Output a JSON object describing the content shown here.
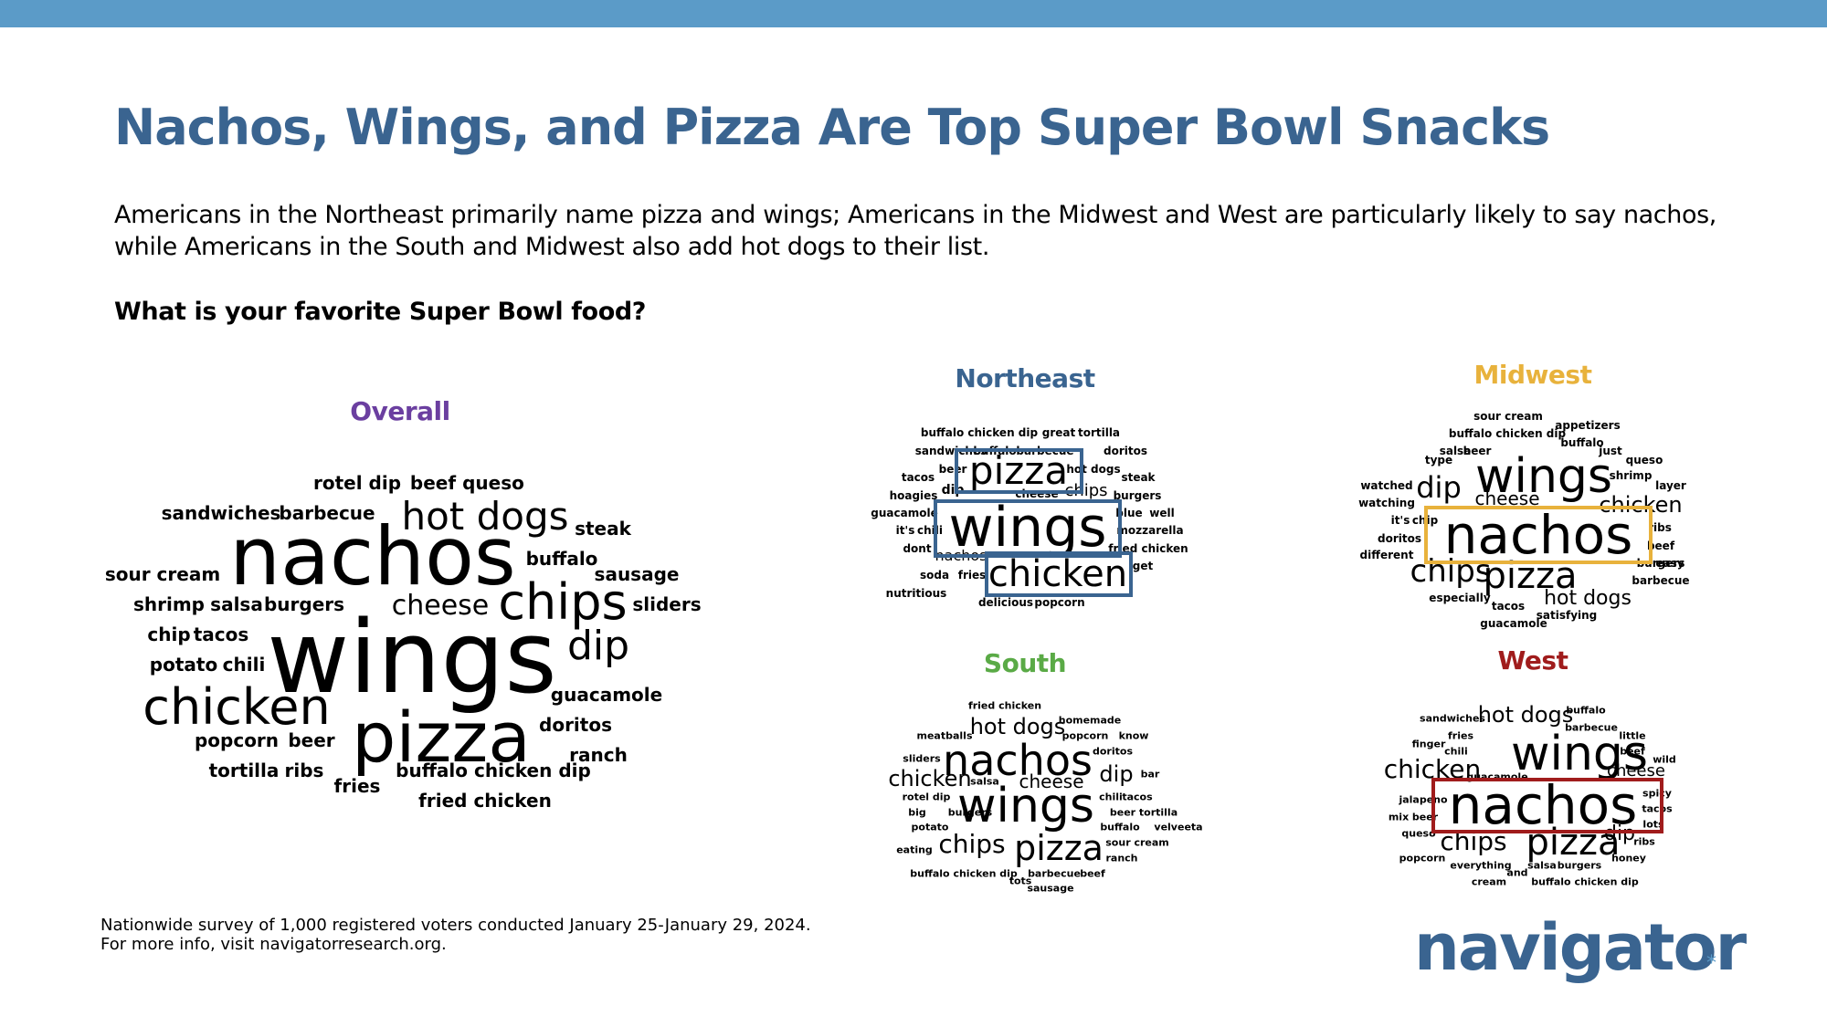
{
  "header": {
    "title": "Nachos, Wings, and Pizza Are Top Super Bowl Snacks",
    "subtitle": "Americans in the Northeast primarily name pizza and wings; Americans in the Midwest and West are particularly likely to say nachos, while Americans in the South and Midwest also add hot dogs to their list.",
    "question": "What is your favorite Super Bowl food?"
  },
  "colors": {
    "topbar": "#5b9bc8",
    "title": "#3a6490",
    "overall": "#6b3fa0",
    "northeast": "#3a6490",
    "midwest": "#e8b23c",
    "south": "#5aaa46",
    "west": "#a01c1c"
  },
  "clouds": {
    "overall": {
      "title": "Overall",
      "words": [
        "nachos",
        "wings",
        "pizza",
        "chicken",
        "chips",
        "hot dogs",
        "dip",
        "cheese",
        "rotel dip",
        "beef",
        "queso",
        "sandwiches",
        "barbecue",
        "steak",
        "buffalo",
        "sour cream",
        "sausage",
        "shrimp",
        "salsa",
        "burgers",
        "sliders",
        "chip",
        "tacos",
        "potato",
        "chili",
        "guacamole",
        "doritos",
        "popcorn",
        "beer",
        "ranch",
        "tortilla",
        "ribs",
        "buffalo chicken dip",
        "fries",
        "fried chicken"
      ]
    },
    "northeast": {
      "title": "Northeast",
      "words": [
        "pizza",
        "wings",
        "chicken",
        "buffalo chicken dip",
        "great",
        "tortilla",
        "sandwiches",
        "buffalo",
        "barbecue",
        "doritos",
        "beer",
        "hot dogs",
        "tacos",
        "steak",
        "hoagies",
        "dip",
        "cheese",
        "chips",
        "burgers",
        "guacamole",
        "blue",
        "well",
        "it's",
        "chili",
        "mozzarella",
        "dont",
        "nachos",
        "fried chicken",
        "soda",
        "fries",
        "get",
        "nutritious",
        "delicious",
        "popcorn"
      ]
    },
    "midwest": {
      "title": "Midwest",
      "words": [
        "nachos",
        "wings",
        "pizza",
        "chips",
        "dip",
        "chicken",
        "cheese",
        "hot dogs",
        "sour cream",
        "appetizers",
        "buffalo chicken dip",
        "buffalo",
        "salsa",
        "beer",
        "just",
        "type",
        "queso",
        "shrimp",
        "layer",
        "watched",
        "watching",
        "it's",
        "chip",
        "ribs",
        "doritos",
        "beef",
        "different",
        "easy",
        "burgers",
        "barbecue",
        "especially",
        "tacos",
        "satisfying",
        "guacamole"
      ]
    },
    "south": {
      "title": "South",
      "words": [
        "nachos",
        "wings",
        "pizza",
        "hot dogs",
        "chicken",
        "chips",
        "dip",
        "cheese",
        "fried chicken",
        "homemade",
        "meatballs",
        "popcorn",
        "know",
        "doritos",
        "sliders",
        "bar",
        "salsa",
        "rotel dip",
        "chili",
        "tacos",
        "big",
        "burgers",
        "beer",
        "tortilla",
        "potato",
        "buffalo",
        "velveeta",
        "sour cream",
        "eating",
        "ranch",
        "buffalo chicken dip",
        "barbecue",
        "beef",
        "tots",
        "sausage"
      ]
    },
    "west": {
      "title": "West",
      "words": [
        "nachos",
        "wings",
        "pizza",
        "chicken",
        "chips",
        "hot dogs",
        "dip",
        "cheese",
        "sandwiches",
        "buffalo",
        "barbecue",
        "fries",
        "little",
        "finger",
        "chili",
        "beef",
        "wild",
        "guacamole",
        "jalapeno",
        "spicy",
        "tacos",
        "mix",
        "beer",
        "lots",
        "queso",
        "ribs",
        "popcorn",
        "honey",
        "everything",
        "salsa",
        "burgers",
        "cream",
        "and",
        "buffalo chicken dip"
      ]
    }
  },
  "footnote": {
    "line1": "Nationwide survey of 1,000 registered voters conducted January 25-January 29, 2024.",
    "line2": "For more info, visit navigatorresearch.org."
  },
  "logo": {
    "text": "navigator",
    "mark": "*"
  }
}
